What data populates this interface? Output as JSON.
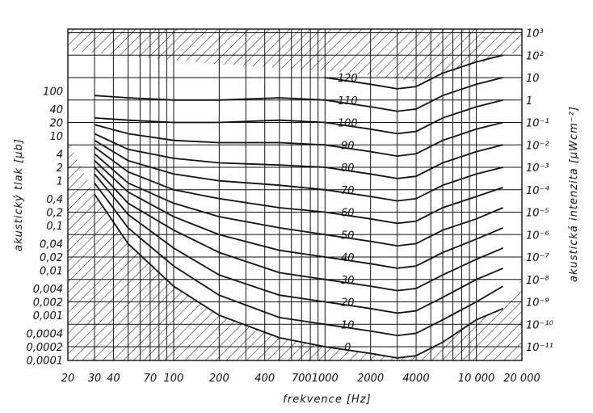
{
  "chart_data": {
    "type": "line",
    "title": "",
    "xlabel": "frekvence [Hz]",
    "ylabel_left": "akustický tlak [µb]",
    "ylabel_right": "akustická intenzita [µWcm⁻²]",
    "x_scale": "log",
    "xlim": [
      20,
      20000
    ],
    "grid": true,
    "x_ticks": [
      "20",
      "30",
      "40",
      "70",
      "100",
      "200",
      "400",
      "700",
      "1000",
      "2000",
      "4000",
      "10 000",
      "20 000"
    ],
    "left_ticks": [
      "100",
      "40",
      "20",
      "10",
      "4",
      "2",
      "1",
      "0,4",
      "0,2",
      "0,1",
      "0,04",
      "0,02",
      "0,01",
      "0,004",
      "0,002",
      "0,001",
      "0,0004",
      "0,0002",
      "0,0001"
    ],
    "right_ticks": [
      "10³",
      "10²",
      "10",
      "1",
      "10⁻¹",
      "10⁻²",
      "10⁻³",
      "10⁻⁴",
      "10⁻⁵",
      "10⁻⁶",
      "10⁻⁷",
      "10⁻⁸",
      "10⁻⁹",
      "10⁻¹⁰",
      "10⁻¹¹"
    ],
    "x": [
      30,
      50,
      100,
      200,
      500,
      1000,
      2000,
      3000,
      4000,
      6000,
      10000,
      15000
    ],
    "series": [
      {
        "name": "0",
        "values": [
          68,
          46,
          27,
          14,
          4,
          0,
          -3,
          -5,
          -4,
          2,
          12,
          17
        ]
      },
      {
        "name": "10",
        "values": [
          73,
          53,
          36,
          23,
          13,
          10,
          7,
          5,
          6,
          12,
          20,
          27
        ]
      },
      {
        "name": "20",
        "values": [
          77,
          59,
          44,
          32,
          23,
          20,
          17,
          15,
          16,
          22,
          30,
          35
        ]
      },
      {
        "name": "30",
        "values": [
          80,
          64,
          52,
          42,
          33,
          30,
          27,
          25,
          26,
          32,
          39,
          44
        ]
      },
      {
        "name": "40",
        "values": [
          83,
          69,
          58,
          50,
          43,
          40,
          37,
          35,
          36,
          42,
          48,
          53
        ]
      },
      {
        "name": "50",
        "values": [
          86,
          73,
          64,
          58,
          53,
          50,
          47,
          45,
          46,
          52,
          57,
          62
        ]
      },
      {
        "name": "60",
        "values": [
          89,
          78,
          70,
          66,
          62,
          60,
          57,
          55,
          56,
          62,
          67,
          71
        ]
      },
      {
        "name": "70",
        "values": [
          92,
          83,
          77,
          74,
          72,
          70,
          67,
          65,
          66,
          72,
          77,
          80
        ]
      },
      {
        "name": "80",
        "values": [
          95,
          88,
          84,
          82,
          81,
          80,
          77,
          75,
          76,
          82,
          87,
          90
        ]
      },
      {
        "name": "90",
        "values": [
          99,
          95,
          92,
          91,
          91,
          90,
          87,
          85,
          86,
          92,
          97,
          100
        ]
      },
      {
        "name": "100",
        "values": [
          102,
          101,
          100,
          100,
          101,
          100,
          97,
          95,
          96,
          102,
          107,
          110
        ]
      },
      {
        "name": "110",
        "values": [
          112,
          111,
          110,
          110,
          111,
          110,
          107,
          105,
          106,
          112,
          117,
          120
        ]
      },
      {
        "name": "120",
        "values": [
          null,
          null,
          null,
          null,
          null,
          120,
          117,
          115,
          116,
          122,
          127,
          130
        ]
      }
    ]
  }
}
